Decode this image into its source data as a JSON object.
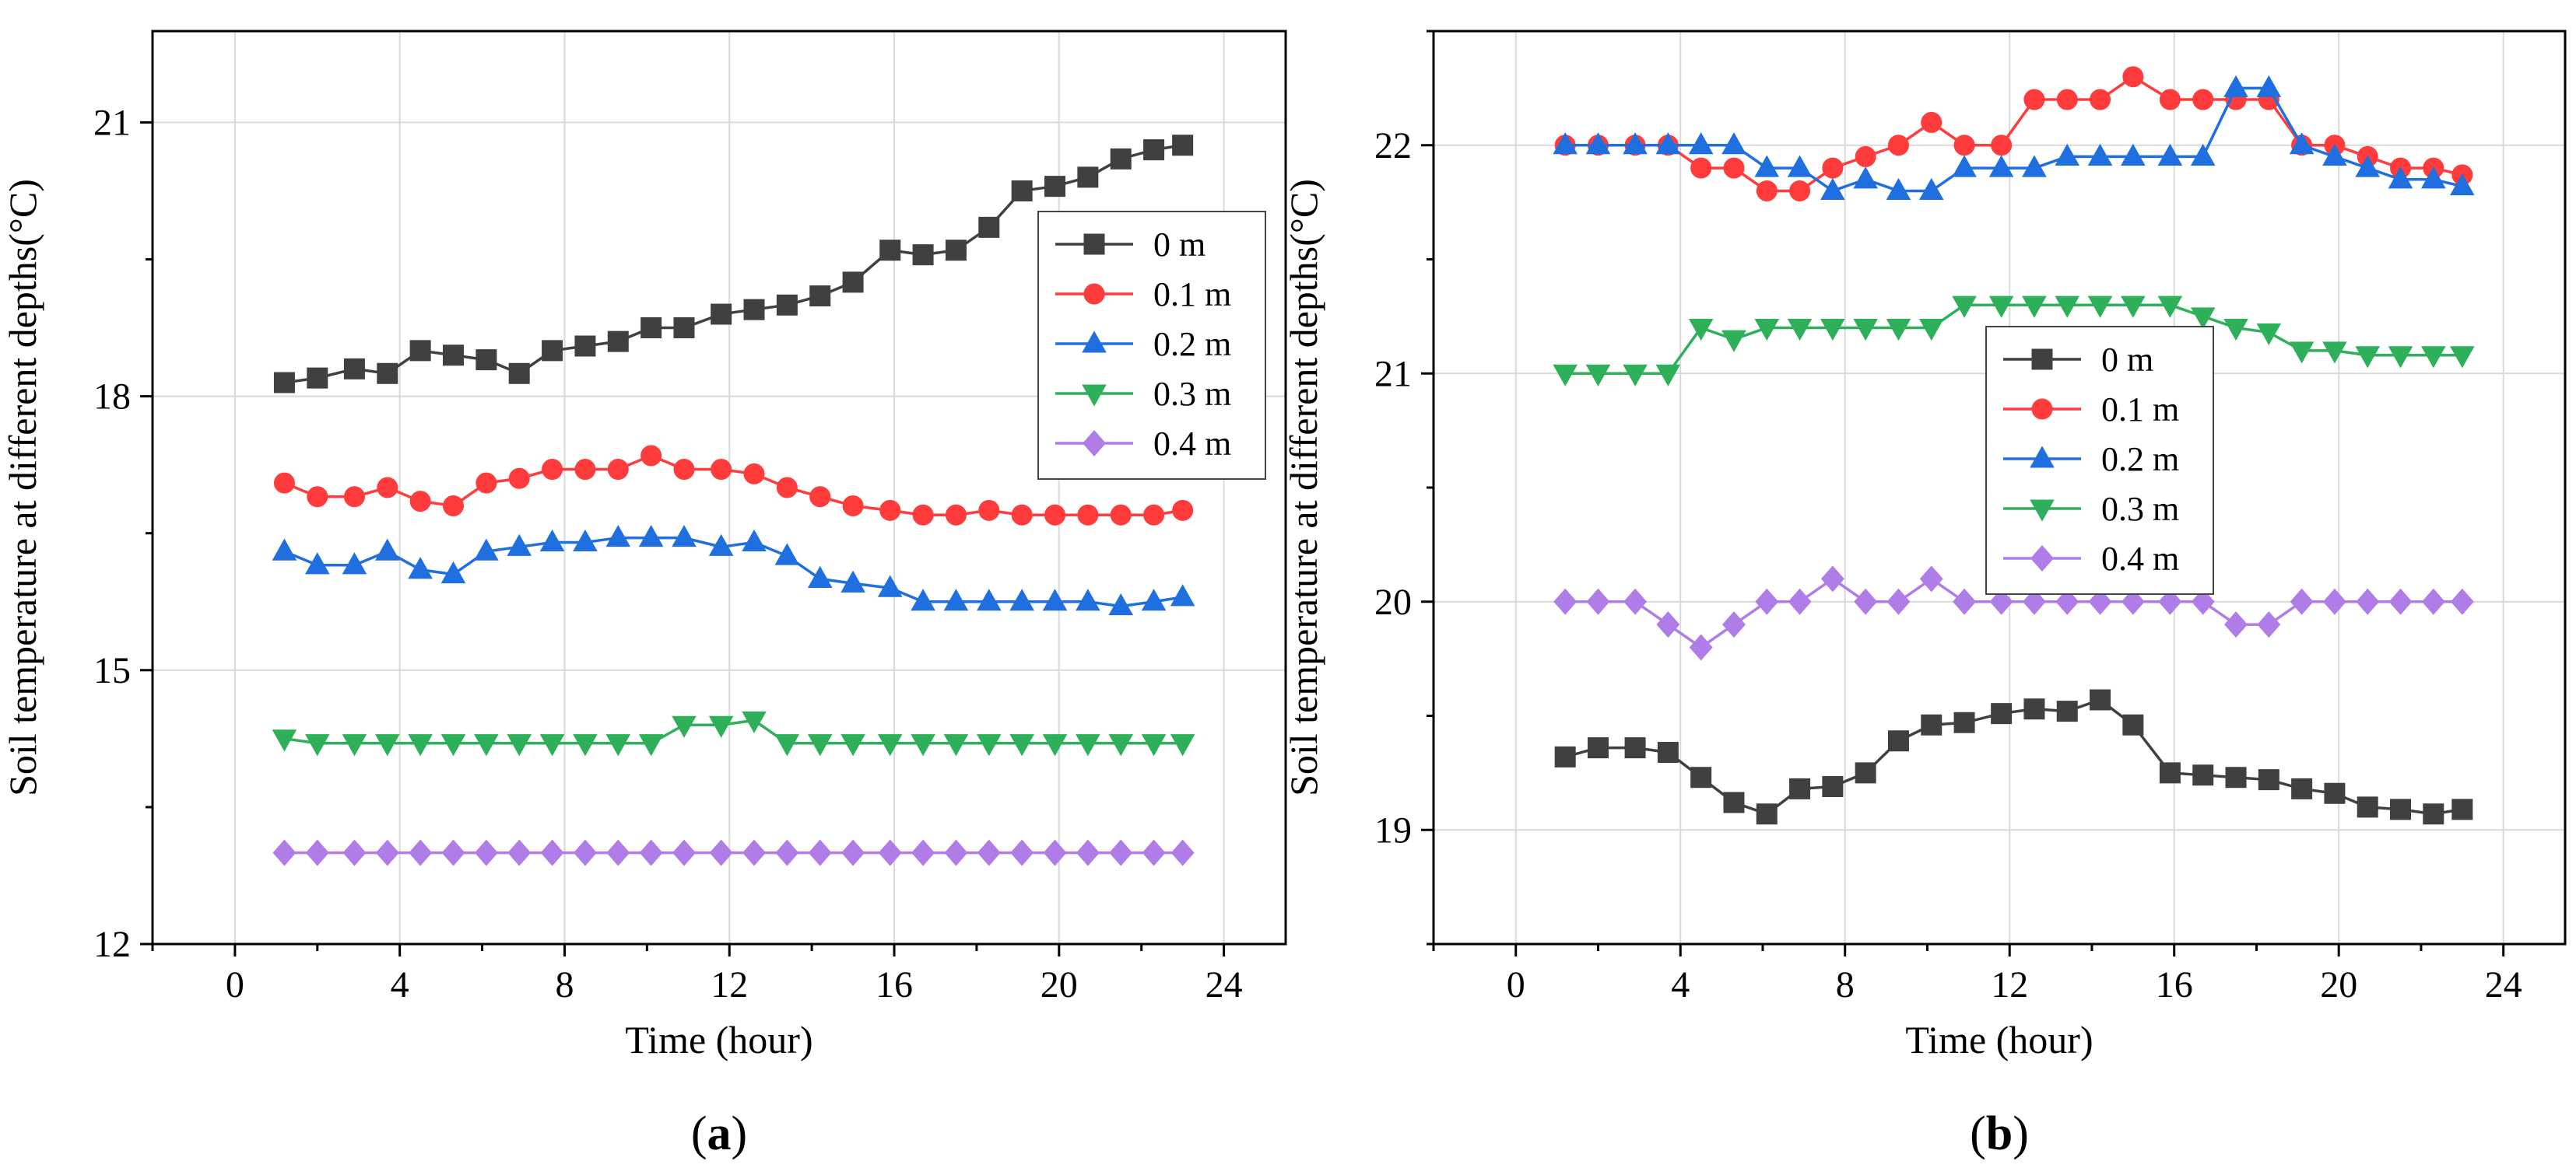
{
  "chart_data": [
    {
      "type": "line",
      "panel_label": "(a)",
      "panel_letter": "a",
      "xlabel": "Time (hour)",
      "ylabel": "Soil temperature at different depths(°C)",
      "xlim": [
        -2,
        25.5
      ],
      "ylim": [
        12,
        22
      ],
      "xticks": [
        0,
        4,
        8,
        12,
        16,
        20,
        24
      ],
      "yticks": [
        12,
        15,
        18,
        21
      ],
      "grid": true,
      "legend_position": "right",
      "x": [
        1.2,
        2.0,
        2.9,
        3.7,
        4.5,
        5.3,
        6.1,
        6.9,
        7.7,
        8.5,
        9.3,
        10.1,
        10.9,
        11.8,
        12.6,
        13.4,
        14.2,
        15.0,
        15.9,
        16.7,
        17.5,
        18.3,
        19.1,
        19.9,
        20.7,
        21.5,
        22.3,
        23.0
      ],
      "series": [
        {
          "name": "0 m",
          "color": "#404040",
          "marker": "square",
          "values": [
            18.15,
            18.2,
            18.3,
            18.25,
            18.5,
            18.45,
            18.4,
            18.25,
            18.5,
            18.55,
            18.6,
            18.75,
            18.75,
            18.9,
            18.95,
            19.0,
            19.1,
            19.25,
            19.6,
            19.55,
            19.6,
            19.85,
            20.25,
            20.3,
            20.4,
            20.6,
            20.7,
            20.75
          ]
        },
        {
          "name": "0.1 m",
          "color": "#ff3b3b",
          "marker": "circle",
          "values": [
            17.05,
            16.9,
            16.9,
            17.0,
            16.85,
            16.8,
            17.05,
            17.1,
            17.2,
            17.2,
            17.2,
            17.35,
            17.2,
            17.2,
            17.15,
            17.0,
            16.9,
            16.8,
            16.75,
            16.7,
            16.7,
            16.75,
            16.7,
            16.7,
            16.7,
            16.7,
            16.7,
            16.75
          ]
        },
        {
          "name": "0.2 m",
          "color": "#1f6fe0",
          "marker": "triangle-up",
          "values": [
            16.3,
            16.15,
            16.15,
            16.3,
            16.1,
            16.05,
            16.3,
            16.35,
            16.4,
            16.4,
            16.45,
            16.45,
            16.45,
            16.35,
            16.4,
            16.25,
            16.0,
            15.95,
            15.9,
            15.75,
            15.75,
            15.75,
            15.75,
            15.75,
            15.75,
            15.7,
            15.75,
            15.8
          ]
        },
        {
          "name": "0.3 m",
          "color": "#2eb05b",
          "marker": "triangle-down",
          "values": [
            14.25,
            14.2,
            14.2,
            14.2,
            14.2,
            14.2,
            14.2,
            14.2,
            14.2,
            14.2,
            14.2,
            14.2,
            14.4,
            14.4,
            14.45,
            14.2,
            14.2,
            14.2,
            14.2,
            14.2,
            14.2,
            14.2,
            14.2,
            14.2,
            14.2,
            14.2,
            14.2,
            14.2
          ]
        },
        {
          "name": "0.4 m",
          "color": "#b07ce8",
          "marker": "diamond",
          "values": [
            13.0,
            13.0,
            13.0,
            13.0,
            13.0,
            13.0,
            13.0,
            13.0,
            13.0,
            13.0,
            13.0,
            13.0,
            13.0,
            13.0,
            13.0,
            13.0,
            13.0,
            13.0,
            13.0,
            13.0,
            13.0,
            13.0,
            13.0,
            13.0,
            13.0,
            13.0,
            13.0,
            13.0
          ]
        }
      ]
    },
    {
      "type": "line",
      "panel_label": "(b)",
      "panel_letter": "b",
      "xlabel": "Time (hour)",
      "ylabel": "Soil temperature at different depths(°C)",
      "xlim": [
        -2,
        25.5
      ],
      "ylim": [
        18.5,
        22.5
      ],
      "xticks": [
        0,
        4,
        8,
        12,
        16,
        20,
        24
      ],
      "yticks": [
        19,
        20,
        21,
        22
      ],
      "grid": true,
      "legend_position": "center",
      "x": [
        1.2,
        2.0,
        2.9,
        3.7,
        4.5,
        5.3,
        6.1,
        6.9,
        7.7,
        8.5,
        9.3,
        10.1,
        10.9,
        11.8,
        12.6,
        13.4,
        14.2,
        15.0,
        15.9,
        16.7,
        17.5,
        18.3,
        19.1,
        19.9,
        20.7,
        21.5,
        22.3,
        23.0
      ],
      "series": [
        {
          "name": "0 m",
          "color": "#404040",
          "marker": "square",
          "values": [
            19.32,
            19.36,
            19.36,
            19.34,
            19.23,
            19.12,
            19.07,
            19.18,
            19.19,
            19.25,
            19.39,
            19.46,
            19.47,
            19.51,
            19.53,
            19.52,
            19.57,
            19.46,
            19.25,
            19.24,
            19.23,
            19.22,
            19.18,
            19.16,
            19.1,
            19.09,
            19.07,
            19.09
          ]
        },
        {
          "name": "0.1 m",
          "color": "#ff3b3b",
          "marker": "circle",
          "values": [
            22.0,
            22.0,
            22.0,
            22.0,
            21.9,
            21.9,
            21.8,
            21.8,
            21.9,
            21.95,
            22.0,
            22.1,
            22.0,
            22.0,
            22.2,
            22.2,
            22.2,
            22.3,
            22.2,
            22.2,
            22.2,
            22.2,
            22.0,
            22.0,
            21.95,
            21.9,
            21.9,
            21.87
          ]
        },
        {
          "name": "0.2 m",
          "color": "#1f6fe0",
          "marker": "triangle-up",
          "values": [
            22.0,
            22.0,
            22.0,
            22.0,
            22.0,
            22.0,
            21.9,
            21.9,
            21.8,
            21.85,
            21.8,
            21.8,
            21.9,
            21.9,
            21.9,
            21.95,
            21.95,
            21.95,
            21.95,
            21.95,
            22.25,
            22.25,
            22.0,
            21.95,
            21.9,
            21.85,
            21.85,
            21.82
          ]
        },
        {
          "name": "0.3 m",
          "color": "#2eb05b",
          "marker": "triangle-down",
          "values": [
            21.0,
            21.0,
            21.0,
            21.0,
            21.2,
            21.15,
            21.2,
            21.2,
            21.2,
            21.2,
            21.2,
            21.2,
            21.3,
            21.3,
            21.3,
            21.3,
            21.3,
            21.3,
            21.3,
            21.25,
            21.2,
            21.18,
            21.1,
            21.1,
            21.08,
            21.08,
            21.08,
            21.08
          ]
        },
        {
          "name": "0.4 m",
          "color": "#b07ce8",
          "marker": "diamond",
          "values": [
            20.0,
            20.0,
            20.0,
            19.9,
            19.8,
            19.9,
            20.0,
            20.0,
            20.1,
            20.0,
            20.0,
            20.1,
            20.0,
            20.0,
            20.0,
            20.0,
            20.0,
            20.0,
            20.0,
            20.0,
            19.9,
            19.9,
            20.0,
            20.0,
            20.0,
            20.0,
            20.0,
            20.0
          ]
        }
      ]
    }
  ]
}
